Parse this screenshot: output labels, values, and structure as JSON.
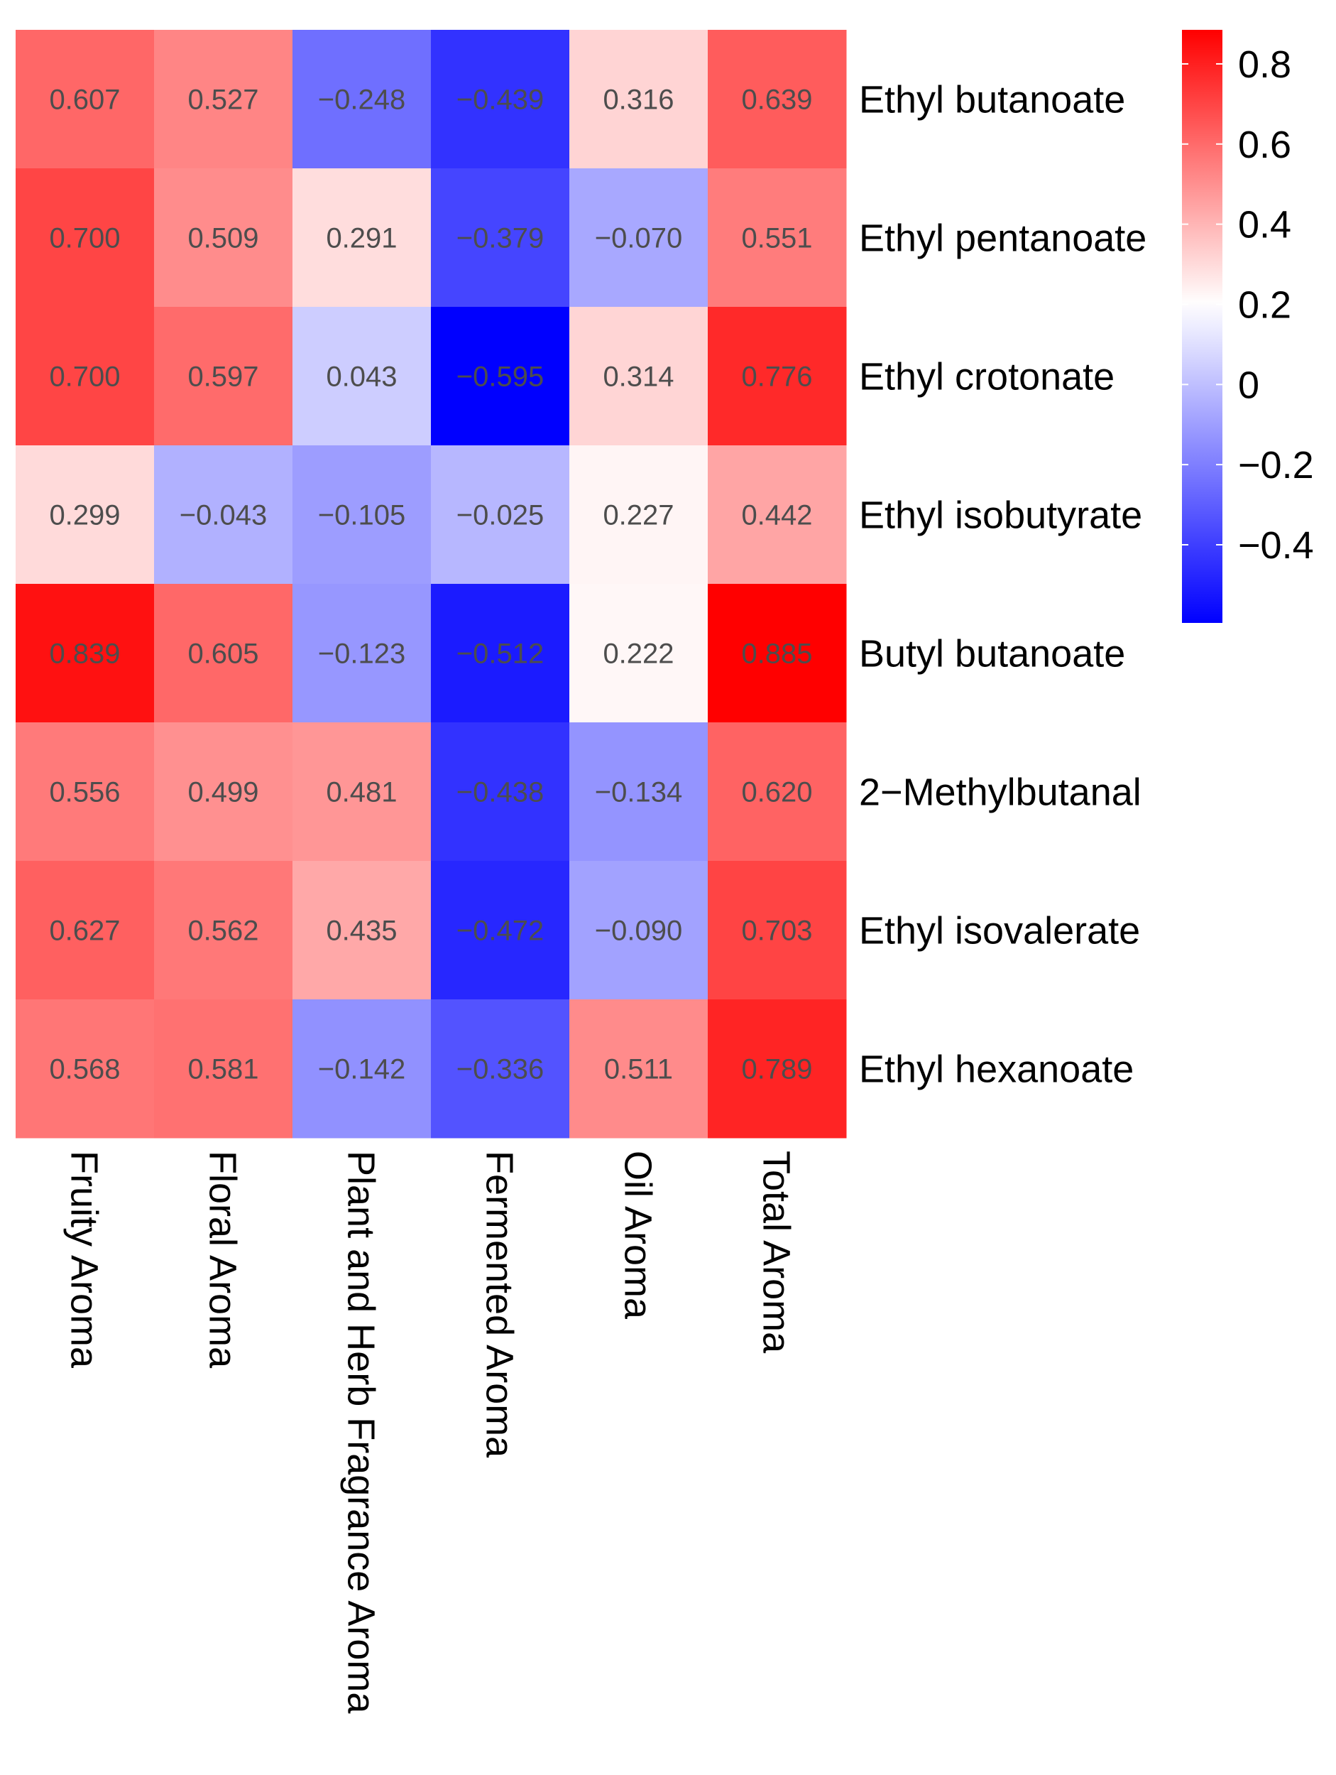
{
  "chart_data": {
    "type": "heatmap",
    "title": "",
    "columns": [
      "Fruity Aroma",
      "Floral Aroma",
      "Plant and Herb Fragrance Aroma",
      "Fermented Aroma",
      "Oil Aroma",
      "Total Aroma"
    ],
    "rows": [
      "Ethyl butanoate",
      "Ethyl pentanoate",
      "Ethyl crotonate",
      "Ethyl isobutyrate",
      "Butyl butanoate",
      "2−Methylbutanal",
      "Ethyl isovalerate",
      "Ethyl hexanoate"
    ],
    "values": [
      [
        0.607,
        0.527,
        -0.248,
        -0.439,
        0.316,
        0.639
      ],
      [
        0.7,
        0.509,
        0.291,
        -0.379,
        -0.07,
        0.551
      ],
      [
        0.7,
        0.597,
        0.043,
        -0.595,
        0.314,
        0.776
      ],
      [
        0.299,
        -0.043,
        -0.105,
        -0.025,
        0.227,
        0.442
      ],
      [
        0.839,
        0.605,
        -0.123,
        -0.512,
        0.222,
        0.885
      ],
      [
        0.556,
        0.499,
        0.481,
        -0.438,
        -0.134,
        0.62
      ],
      [
        0.627,
        0.562,
        0.435,
        -0.472,
        -0.09,
        0.703
      ],
      [
        0.568,
        0.581,
        -0.142,
        -0.336,
        0.511,
        0.789
      ]
    ],
    "cell_labels": [
      [
        "0.607",
        "0.527",
        "−0.248",
        "−0.439",
        "0.316",
        "0.639"
      ],
      [
        "0.700",
        "0.509",
        "0.291",
        "−0.379",
        "−0.070",
        "0.551"
      ],
      [
        "0.700",
        "0.597",
        "0.043",
        "−0.595",
        "0.314",
        "0.776"
      ],
      [
        "0.299",
        "−0.043",
        "−0.105",
        "−0.025",
        "0.227",
        "0.442"
      ],
      [
        "0.839",
        "0.605",
        "−0.123",
        "−0.512",
        "0.222",
        "0.885"
      ],
      [
        "0.556",
        "0.499",
        "0.481",
        "−0.438",
        "−0.134",
        "0.620"
      ],
      [
        "0.627",
        "0.562",
        "0.435",
        "−0.472",
        "−0.090",
        "0.703"
      ],
      [
        "0.568",
        "0.581",
        "−0.142",
        "−0.336",
        "0.511",
        "0.789"
      ]
    ],
    "colorbar": {
      "min": -0.595,
      "max": 0.885,
      "mid": 0.2,
      "ticks": [
        0.8,
        0.6,
        0.4,
        0.2,
        0,
        -0.2,
        -0.4
      ],
      "tick_labels": [
        "0.8",
        "0.6",
        "0.4",
        "0.2",
        "0",
        "−0.2",
        "−0.4"
      ],
      "low_color": "#0000ff",
      "mid_color": "#ffffff",
      "high_color": "#ff0000"
    }
  }
}
